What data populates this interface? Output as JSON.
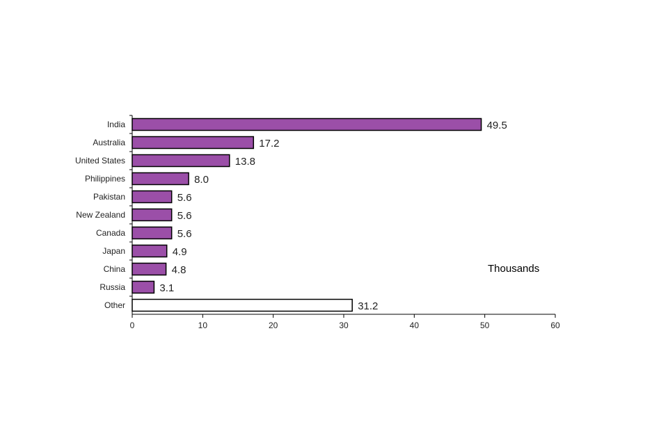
{
  "chart_data": {
    "type": "bar",
    "orientation": "horizontal",
    "categories": [
      "India",
      "Australia",
      "United States",
      "Philippines",
      "Pakistan",
      "New Zealand",
      "Canada",
      "Japan",
      "China",
      "Russia",
      "Other"
    ],
    "values": [
      49.5,
      17.2,
      13.8,
      8.0,
      5.6,
      5.6,
      5.6,
      4.9,
      4.8,
      3.1,
      31.2
    ],
    "value_labels": [
      "49.5",
      "17.2",
      "13.8",
      "8.0",
      "5.6",
      "5.6",
      "5.6",
      "4.9",
      "4.8",
      "3.1",
      "31.2"
    ],
    "xlim": [
      0,
      60
    ],
    "xticks": [
      0,
      10,
      20,
      30,
      40,
      50,
      60
    ],
    "xtick_labels": [
      "0",
      "10",
      "20",
      "30",
      "40",
      "50",
      "60"
    ],
    "annotation": "Thousands",
    "grid": false,
    "legend": "none",
    "colors": {
      "bar_fill": "#9b4fa8",
      "highlight_fill": "#ffffff",
      "bar_stroke": "#000000",
      "axis": "#000000"
    },
    "highlight_categories": [
      "Other"
    ]
  }
}
